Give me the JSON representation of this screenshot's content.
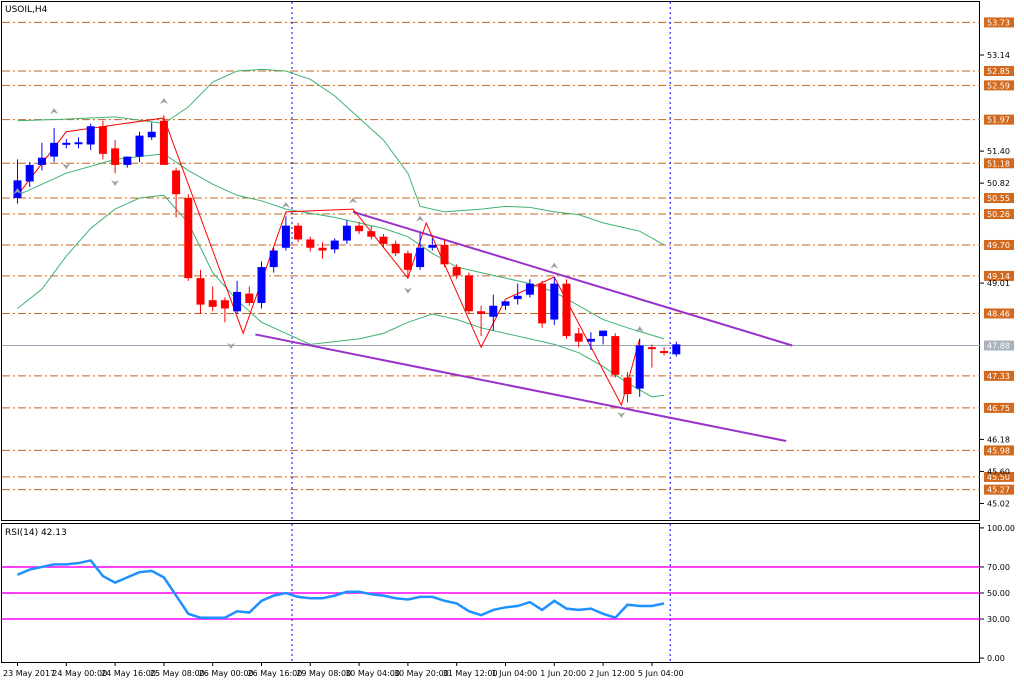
{
  "window": {
    "symbol_label": "USOIL,H4",
    "rsi_label": "RSI(14) 42.13"
  },
  "colors": {
    "background": "#ffffff",
    "frame": "#000000",
    "bull_candle": "#0000ff",
    "bear_candle": "#ff0000",
    "level_line": "#c8641e",
    "level_tag": "#d2691e",
    "bollinger": "#3cb371",
    "channel": "#9932cc",
    "zigzag": "#ff0000",
    "rsi_line": "#1e90ff",
    "rsi_levels": "#ff00ff",
    "current_price_line": "#9aa7b4",
    "vertical_marker": "#0000ff"
  },
  "chart_data": [
    {
      "type": "candlestick",
      "name": "USOIL H4",
      "ylim": [
        44.72,
        54.1
      ],
      "y_ticks": [
        "53.14",
        "51.40",
        "50.82",
        "49.01",
        "46.18",
        "45.60",
        "45.02"
      ],
      "levels": [
        {
          "value": 53.73,
          "label": "53.73"
        },
        {
          "value": 52.85,
          "label": "52.85"
        },
        {
          "value": 52.59,
          "label": "52.59"
        },
        {
          "value": 51.97,
          "label": "51.97"
        },
        {
          "value": 51.18,
          "label": "51.18"
        },
        {
          "value": 50.55,
          "label": "50.55"
        },
        {
          "value": 50.26,
          "label": "50.26"
        },
        {
          "value": 49.7,
          "label": "49.70"
        },
        {
          "value": 49.14,
          "label": "49.14"
        },
        {
          "value": 48.46,
          "label": "48.46"
        },
        {
          "value": 47.33,
          "label": "47.33"
        },
        {
          "value": 46.75,
          "label": "46.75"
        },
        {
          "value": 45.98,
          "label": "45.98"
        },
        {
          "value": 45.5,
          "label": "45.50"
        },
        {
          "value": 45.27,
          "label": "45.27"
        }
      ],
      "current_price": {
        "value": 47.88,
        "label": "47.88"
      },
      "candles": [
        {
          "o": 50.55,
          "h": 51.25,
          "l": 50.45,
          "c": 50.87
        },
        {
          "o": 50.85,
          "h": 51.2,
          "l": 50.75,
          "c": 51.15
        },
        {
          "o": 51.15,
          "h": 51.55,
          "l": 51.05,
          "c": 51.28
        },
        {
          "o": 51.3,
          "h": 51.82,
          "l": 51.2,
          "c": 51.55
        },
        {
          "o": 51.52,
          "h": 51.62,
          "l": 51.45,
          "c": 51.55
        },
        {
          "o": 51.55,
          "h": 51.65,
          "l": 51.45,
          "c": 51.56
        },
        {
          "o": 51.52,
          "h": 51.9,
          "l": 51.42,
          "c": 51.85
        },
        {
          "o": 51.85,
          "h": 51.95,
          "l": 51.25,
          "c": 51.35
        },
        {
          "o": 51.45,
          "h": 51.6,
          "l": 51.0,
          "c": 51.15
        },
        {
          "o": 51.15,
          "h": 51.3,
          "l": 51.1,
          "c": 51.3
        },
        {
          "o": 51.3,
          "h": 51.75,
          "l": 51.2,
          "c": 51.68
        },
        {
          "o": 51.65,
          "h": 51.92,
          "l": 51.6,
          "c": 51.75
        },
        {
          "o": 51.95,
          "h": 52.05,
          "l": 51.15,
          "c": 51.15
        },
        {
          "o": 51.05,
          "h": 51.1,
          "l": 50.2,
          "c": 50.62
        },
        {
          "o": 50.55,
          "h": 50.62,
          "l": 49.05,
          "c": 49.1
        },
        {
          "o": 49.1,
          "h": 49.25,
          "l": 48.45,
          "c": 48.62
        },
        {
          "o": 48.7,
          "h": 48.95,
          "l": 48.5,
          "c": 48.58
        },
        {
          "o": 48.7,
          "h": 48.75,
          "l": 48.3,
          "c": 48.55
        },
        {
          "o": 48.5,
          "h": 49.05,
          "l": 48.45,
          "c": 48.85
        },
        {
          "o": 48.82,
          "h": 48.95,
          "l": 48.6,
          "c": 48.65
        },
        {
          "o": 48.65,
          "h": 49.4,
          "l": 48.55,
          "c": 49.3
        },
        {
          "o": 49.3,
          "h": 49.65,
          "l": 49.2,
          "c": 49.6
        },
        {
          "o": 49.65,
          "h": 50.22,
          "l": 49.6,
          "c": 50.05
        },
        {
          "o": 50.05,
          "h": 50.1,
          "l": 49.75,
          "c": 49.8
        },
        {
          "o": 49.8,
          "h": 49.85,
          "l": 49.58,
          "c": 49.65
        },
        {
          "o": 49.65,
          "h": 49.75,
          "l": 49.45,
          "c": 49.6
        },
        {
          "o": 49.62,
          "h": 49.82,
          "l": 49.55,
          "c": 49.78
        },
        {
          "o": 49.78,
          "h": 50.15,
          "l": 49.72,
          "c": 50.05
        },
        {
          "o": 50.05,
          "h": 50.12,
          "l": 49.9,
          "c": 49.95
        },
        {
          "o": 49.95,
          "h": 50.05,
          "l": 49.8,
          "c": 49.85
        },
        {
          "o": 49.85,
          "h": 49.9,
          "l": 49.65,
          "c": 49.72
        },
        {
          "o": 49.72,
          "h": 49.78,
          "l": 49.5,
          "c": 49.55
        },
        {
          "o": 49.55,
          "h": 49.6,
          "l": 49.1,
          "c": 49.25
        },
        {
          "o": 49.3,
          "h": 49.92,
          "l": 49.25,
          "c": 49.65
        },
        {
          "o": 49.65,
          "h": 49.82,
          "l": 49.6,
          "c": 49.7
        },
        {
          "o": 49.7,
          "h": 49.8,
          "l": 49.3,
          "c": 49.35
        },
        {
          "o": 49.3,
          "h": 49.35,
          "l": 49.08,
          "c": 49.15
        },
        {
          "o": 49.15,
          "h": 49.2,
          "l": 48.45,
          "c": 48.5
        },
        {
          "o": 48.5,
          "h": 48.6,
          "l": 48.05,
          "c": 48.45
        },
        {
          "o": 48.4,
          "h": 48.8,
          "l": 48.15,
          "c": 48.6
        },
        {
          "o": 48.6,
          "h": 48.68,
          "l": 48.52,
          "c": 48.68
        },
        {
          "o": 48.72,
          "h": 49.0,
          "l": 48.62,
          "c": 48.78
        },
        {
          "o": 48.8,
          "h": 49.08,
          "l": 48.75,
          "c": 49.0
        },
        {
          "o": 49.0,
          "h": 49.05,
          "l": 48.2,
          "c": 48.28
        },
        {
          "o": 48.35,
          "h": 49.12,
          "l": 48.25,
          "c": 49.0
        },
        {
          "o": 49.0,
          "h": 49.08,
          "l": 48.0,
          "c": 48.05
        },
        {
          "o": 48.1,
          "h": 48.2,
          "l": 47.85,
          "c": 47.95
        },
        {
          "o": 47.95,
          "h": 48.12,
          "l": 47.8,
          "c": 48.0
        },
        {
          "o": 48.05,
          "h": 48.15,
          "l": 47.9,
          "c": 48.15
        },
        {
          "o": 48.05,
          "h": 48.1,
          "l": 47.3,
          "c": 47.35
        },
        {
          "o": 47.3,
          "h": 47.4,
          "l": 46.85,
          "c": 47.0
        },
        {
          "o": 47.1,
          "h": 48.0,
          "l": 46.95,
          "c": 47.88
        },
        {
          "o": 47.85,
          "h": 47.9,
          "l": 47.48,
          "c": 47.82
        },
        {
          "o": 47.78,
          "h": 47.85,
          "l": 47.7,
          "c": 47.75
        },
        {
          "o": 47.72,
          "h": 47.95,
          "l": 47.68,
          "c": 47.9
        }
      ],
      "bollinger": {
        "upper": [
          [
            0,
            51.95
          ],
          [
            4,
            51.98
          ],
          [
            8,
            52.02
          ],
          [
            12,
            51.9
          ],
          [
            14,
            52.2
          ],
          [
            16,
            52.65
          ],
          [
            18,
            52.85
          ],
          [
            20,
            52.88
          ],
          [
            22,
            52.85
          ],
          [
            24,
            52.7
          ],
          [
            26,
            52.4
          ],
          [
            28,
            52.0
          ],
          [
            30,
            51.6
          ],
          [
            32,
            51.0
          ],
          [
            33,
            50.4
          ],
          [
            35,
            50.3
          ],
          [
            38,
            50.35
          ],
          [
            40,
            50.4
          ],
          [
            42,
            50.38
          ],
          [
            44,
            50.3
          ],
          [
            46,
            50.25
          ],
          [
            48,
            50.1
          ],
          [
            51,
            49.95
          ],
          [
            53,
            49.7
          ]
        ],
        "middle": [
          [
            0,
            50.6
          ],
          [
            4,
            51.0
          ],
          [
            8,
            51.25
          ],
          [
            12,
            51.35
          ],
          [
            14,
            51.05
          ],
          [
            16,
            50.8
          ],
          [
            18,
            50.6
          ],
          [
            20,
            50.5
          ],
          [
            22,
            50.35
          ],
          [
            26,
            50.2
          ],
          [
            30,
            50.0
          ],
          [
            32,
            49.85
          ],
          [
            34,
            49.55
          ],
          [
            36,
            49.3
          ],
          [
            38,
            49.2
          ],
          [
            40,
            49.1
          ],
          [
            42,
            49.0
          ],
          [
            44,
            48.85
          ],
          [
            46,
            48.6
          ],
          [
            48,
            48.35
          ],
          [
            50,
            48.2
          ],
          [
            53,
            48.0
          ]
        ],
        "lower": [
          [
            0,
            48.55
          ],
          [
            2,
            48.9
          ],
          [
            4,
            49.5
          ],
          [
            6,
            50.0
          ],
          [
            8,
            50.35
          ],
          [
            10,
            50.55
          ],
          [
            12,
            50.6
          ],
          [
            14,
            50.1
          ],
          [
            16,
            49.2
          ],
          [
            18,
            48.7
          ],
          [
            20,
            48.3
          ],
          [
            22,
            48.1
          ],
          [
            24,
            47.9
          ],
          [
            26,
            47.95
          ],
          [
            28,
            48.0
          ],
          [
            30,
            48.1
          ],
          [
            32,
            48.3
          ],
          [
            34,
            48.45
          ],
          [
            36,
            48.35
          ],
          [
            38,
            48.2
          ],
          [
            40,
            48.1
          ],
          [
            42,
            48.0
          ],
          [
            44,
            47.9
          ],
          [
            46,
            47.75
          ],
          [
            48,
            47.5
          ],
          [
            50,
            47.2
          ],
          [
            52,
            46.95
          ],
          [
            53,
            46.98
          ]
        ]
      },
      "zigzag": [
        [
          0,
          50.6
        ],
        [
          4,
          51.75
        ],
        [
          12,
          52.0
        ],
        [
          18.5,
          48.1
        ],
        [
          22,
          50.3
        ],
        [
          27.5,
          50.35
        ],
        [
          32,
          49.1
        ],
        [
          33.5,
          50.1
        ],
        [
          38,
          47.85
        ],
        [
          40,
          48.72
        ],
        [
          44,
          49.12
        ],
        [
          49.5,
          46.8
        ],
        [
          51,
          48.0
        ]
      ],
      "fractals_up": [
        [
          0,
          50.55
        ],
        [
          3,
          52.0
        ],
        [
          12,
          52.18
        ],
        [
          22,
          50.3
        ],
        [
          27.5,
          50.38
        ],
        [
          33,
          50.05
        ],
        [
          44,
          49.2
        ],
        [
          51,
          48.05
        ]
      ],
      "fractals_down": [
        [
          4,
          51.25
        ],
        [
          8,
          50.95
        ],
        [
          17.5,
          48.0
        ],
        [
          32,
          49.0
        ],
        [
          49.5,
          46.75
        ]
      ],
      "channel": {
        "upper": [
          [
            27.5,
            50.3
          ],
          [
            63.5,
            47.88
          ]
        ],
        "lower": [
          [
            19.5,
            48.08
          ],
          [
            63,
            46.15
          ]
        ]
      },
      "x_ticks": [
        {
          "index": 0,
          "label": "23 May 2017"
        },
        {
          "index": 4,
          "label": "24 May 00:00"
        },
        {
          "index": 8,
          "label": "24 May 16:00"
        },
        {
          "index": 12,
          "label": "25 May 08:00"
        },
        {
          "index": 16,
          "label": "26 May 00:00"
        },
        {
          "index": 20,
          "label": "26 May 16:00"
        },
        {
          "index": 24,
          "label": "29 May 08:00"
        },
        {
          "index": 28,
          "label": "30 May 04:00"
        },
        {
          "index": 32,
          "label": "30 May 20:00"
        },
        {
          "index": 36,
          "label": "31 May 12:00"
        },
        {
          "index": 40,
          "label": "1 Jun 04:00"
        },
        {
          "index": 44,
          "label": "1 Jun 20:00"
        },
        {
          "index": 48,
          "label": "2 Jun 12:00"
        },
        {
          "index": 52,
          "label": "5 Jun 04:00"
        }
      ],
      "vertical_markers": [
        22.5,
        53.5
      ]
    },
    {
      "type": "line",
      "name": "RSI(14)",
      "ylim": [
        -3,
        103
      ],
      "y_ticks": [
        "100.00",
        "70.00",
        "50.00",
        "30.00",
        "0.00"
      ],
      "levels": [
        70,
        50,
        30
      ],
      "series": [
        {
          "values": [
            64,
            68,
            70,
            72,
            72,
            73,
            75,
            63,
            58,
            62,
            66,
            67,
            62,
            48,
            34,
            31,
            31,
            31,
            36,
            35,
            44,
            48,
            50,
            47,
            46,
            46,
            48,
            51,
            51,
            49,
            48,
            46,
            45,
            47,
            47,
            44,
            42,
            36,
            33,
            37,
            39,
            40,
            43,
            37,
            44,
            38,
            37,
            38,
            34,
            31,
            41,
            40,
            40,
            42
          ]
        }
      ]
    }
  ]
}
